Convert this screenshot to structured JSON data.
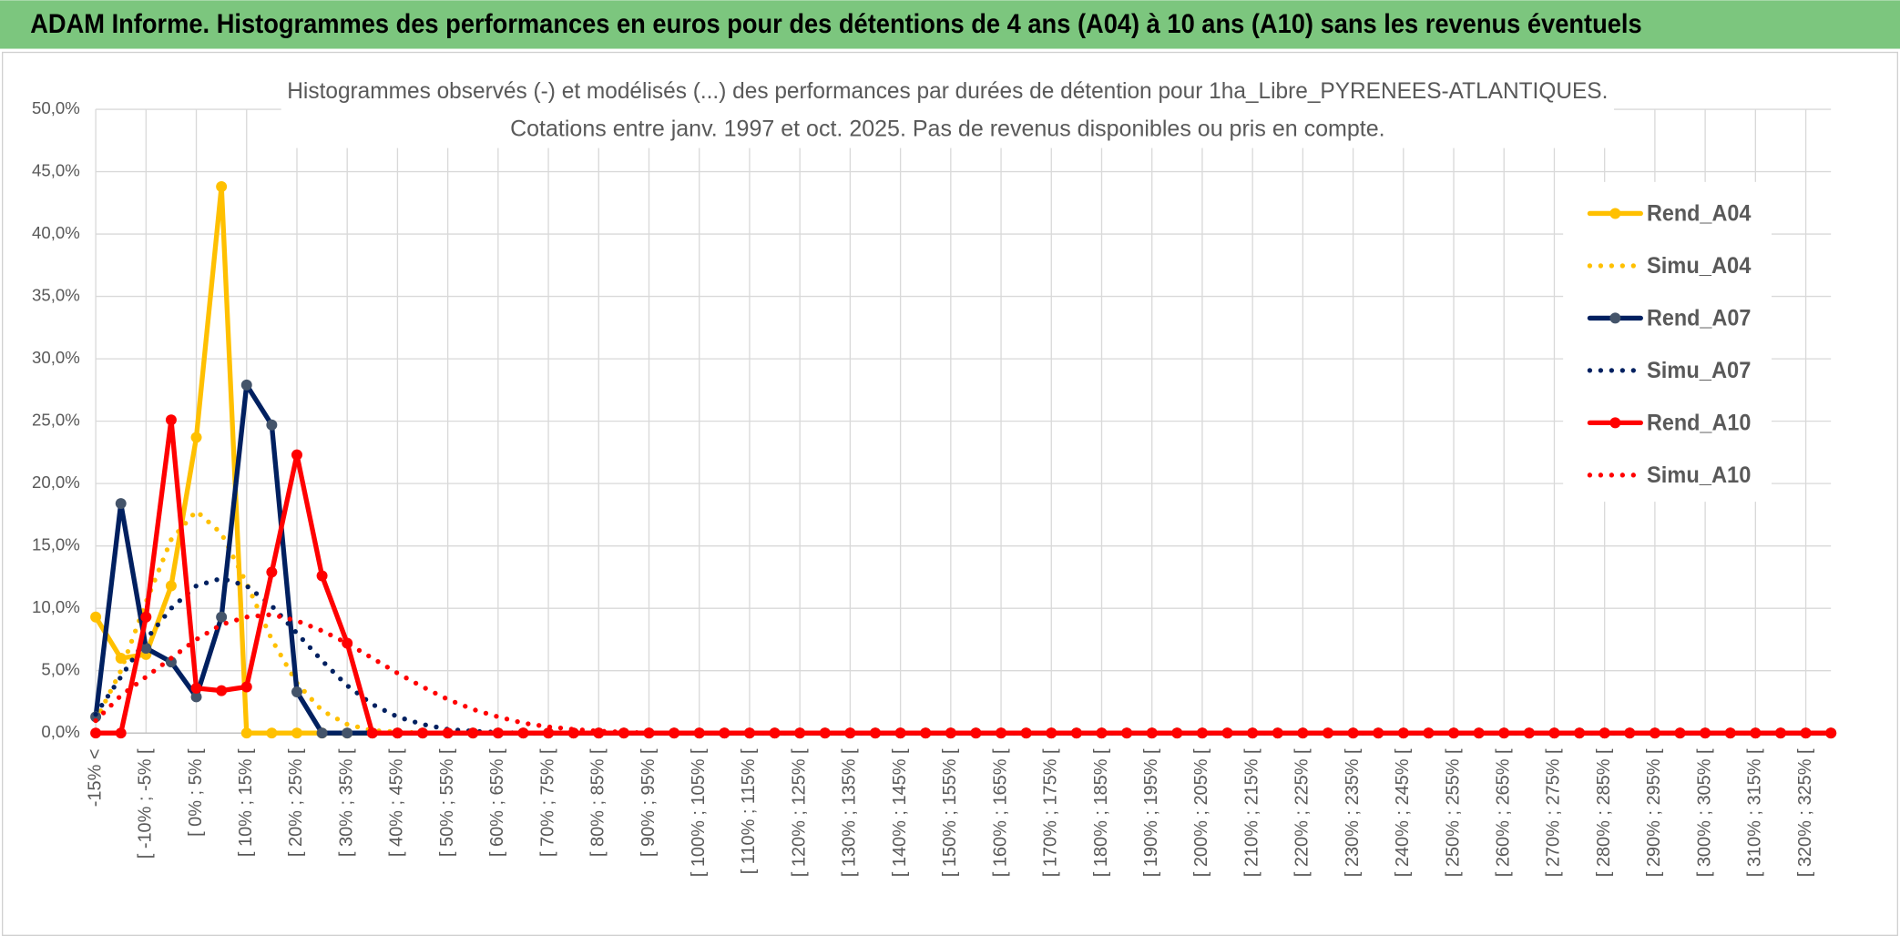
{
  "header": {
    "title": "ADAM Informe. Histogrammes des performances en euros pour des détentions de 4 ans (A04) à 10 ans (A10) sans les revenus éventuels"
  },
  "chart_data": {
    "type": "line",
    "title": "Histogrammes observés (-) et modélisés (...) des performances par durées de détention pour 1ha_Libre_PYRENEES-ATLANTIQUES.",
    "subtitle": "Cotations entre janv. 1997 et oct. 2025. Pas de revenus disponibles ou pris en compte.",
    "categories": [
      "-15% <",
      null,
      "[ -10% ; -5% [",
      null,
      "[ 0% ; 5% [",
      null,
      "[ 10% ; 15% [",
      null,
      "[ 20% ; 25% [",
      null,
      "[ 30% ; 35% [",
      null,
      "[ 40% ; 45% [",
      null,
      "[ 50% ; 55% [",
      null,
      "[ 60% ; 65% [",
      null,
      "[ 70% ; 75% [",
      null,
      "[ 80% ; 85% [",
      null,
      "[ 90% ; 95% [",
      null,
      "[ 100% ; 105% [",
      null,
      "[ 110% ; 115% [",
      null,
      "[ 120% ; 125% [",
      null,
      "[ 130% ; 135% [",
      null,
      "[ 140% ; 145% [",
      null,
      "[ 150% ; 155% [",
      null,
      "[ 160% ; 165% [",
      null,
      "[ 170% ; 175% [",
      null,
      "[ 180% ; 185% [",
      null,
      "[ 190% ; 195% [",
      null,
      "[ 200% ; 205% [",
      null,
      "[ 210% ; 215% [",
      null,
      "[ 220% ; 225% [",
      null,
      "[ 230% ; 235% [",
      null,
      "[ 240% ; 245% [",
      null,
      "[ 250% ; 255% [",
      null,
      "[ 260% ; 265% [",
      null,
      "[ 270% ; 275% [",
      null,
      "[ 280% ; 285% [",
      null,
      "[ 290% ; 295% [",
      null,
      "[ 300% ; 305% [",
      null,
      "[ 310% ; 315% [",
      null,
      "[ 320% ; 325% [",
      null
    ],
    "series": [
      {
        "name": "Rend_A04",
        "color": "#ffc000",
        "style": "solid",
        "values": [
          9.3,
          6.0,
          6.3,
          11.8,
          23.7,
          43.8,
          0,
          0,
          0,
          0,
          0,
          0,
          0,
          0,
          0,
          0,
          0,
          0,
          0,
          0,
          0,
          0,
          0,
          0,
          0,
          0,
          0,
          0,
          0,
          0,
          0,
          0,
          0,
          0,
          0,
          0,
          0,
          0,
          0,
          0,
          0,
          0,
          0,
          0,
          0,
          0,
          0,
          0,
          0,
          0,
          0,
          0,
          0,
          0,
          0,
          0,
          0,
          0,
          0,
          0,
          0,
          0,
          0,
          0,
          0,
          0,
          0,
          0,
          0,
          0
        ]
      },
      {
        "name": "Simu_A04",
        "color": "#ffc000",
        "style": "dotted",
        "values": [
          1.0,
          5.0,
          10.5,
          15.5,
          17.8,
          16.0,
          12.0,
          7.5,
          4.0,
          1.8,
          0.7,
          0.2,
          0.1,
          0,
          0,
          0,
          0,
          0,
          0,
          0,
          0,
          0,
          0,
          0,
          0,
          0,
          0,
          0,
          0,
          0,
          0,
          0,
          0,
          0,
          0,
          0,
          0,
          0,
          0,
          0,
          0,
          0,
          0,
          0,
          0,
          0,
          0,
          0,
          0,
          0,
          0,
          0,
          0,
          0,
          0,
          0,
          0,
          0,
          0,
          0,
          0,
          0,
          0,
          0,
          0,
          0,
          0,
          0,
          0,
          0
        ]
      },
      {
        "name": "Rend_A07",
        "color": "#002060",
        "style": "solid",
        "values": [
          1.3,
          18.4,
          6.8,
          5.7,
          2.9,
          9.3,
          27.9,
          24.7,
          3.3,
          0,
          0,
          0,
          0,
          0,
          0,
          0,
          0,
          0,
          0,
          0,
          0,
          0,
          0,
          0,
          0,
          0,
          0,
          0,
          0,
          0,
          0,
          0,
          0,
          0,
          0,
          0,
          0,
          0,
          0,
          0,
          0,
          0,
          0,
          0,
          0,
          0,
          0,
          0,
          0,
          0,
          0,
          0,
          0,
          0,
          0,
          0,
          0,
          0,
          0,
          0,
          0,
          0,
          0,
          0,
          0,
          0,
          0,
          0,
          0,
          0
        ]
      },
      {
        "name": "Simu_A07",
        "color": "#002060",
        "style": "dotted",
        "values": [
          1.5,
          4.5,
          7.5,
          10.0,
          11.8,
          12.4,
          11.8,
          10.2,
          8.0,
          5.8,
          3.8,
          2.3,
          1.3,
          0.7,
          0.3,
          0.15,
          0.05,
          0,
          0,
          0,
          0,
          0,
          0,
          0,
          0,
          0,
          0,
          0,
          0,
          0,
          0,
          0,
          0,
          0,
          0,
          0,
          0,
          0,
          0,
          0,
          0,
          0,
          0,
          0,
          0,
          0,
          0,
          0,
          0,
          0,
          0,
          0,
          0,
          0,
          0,
          0,
          0,
          0,
          0,
          0,
          0,
          0,
          0,
          0,
          0,
          0,
          0,
          0,
          0,
          0
        ]
      },
      {
        "name": "Rend_A10",
        "color": "#ff0000",
        "style": "solid",
        "values": [
          0,
          0,
          9.3,
          25.1,
          3.6,
          3.4,
          3.7,
          12.9,
          22.3,
          12.6,
          7.2,
          0,
          0,
          0,
          0,
          0,
          0,
          0,
          0,
          0,
          0,
          0,
          0,
          0,
          0,
          0,
          0,
          0,
          0,
          0,
          0,
          0,
          0,
          0,
          0,
          0,
          0,
          0,
          0,
          0,
          0,
          0,
          0,
          0,
          0,
          0,
          0,
          0,
          0,
          0,
          0,
          0,
          0,
          0,
          0,
          0,
          0,
          0,
          0,
          0,
          0,
          0,
          0,
          0,
          0,
          0,
          0,
          0,
          0,
          0
        ]
      },
      {
        "name": "Simu_A10",
        "color": "#ff0000",
        "style": "dotted",
        "values": [
          1.0,
          3.0,
          4.5,
          6.0,
          7.5,
          8.7,
          9.3,
          9.5,
          9.0,
          8.2,
          7.2,
          6.0,
          4.8,
          3.7,
          2.7,
          1.9,
          1.3,
          0.8,
          0.5,
          0.3,
          0.15,
          0.08,
          0,
          0,
          0,
          0,
          0,
          0,
          0,
          0,
          0,
          0,
          0,
          0,
          0,
          0,
          0,
          0,
          0,
          0,
          0,
          0,
          0,
          0,
          0,
          0,
          0,
          0,
          0,
          0,
          0,
          0,
          0,
          0,
          0,
          0,
          0,
          0,
          0,
          0,
          0,
          0,
          0,
          0,
          0,
          0,
          0,
          0,
          0,
          0
        ]
      }
    ],
    "ylim": [
      0,
      50
    ],
    "yticks": [
      {
        "value": 0,
        "label": "0,0%"
      },
      {
        "value": 5,
        "label": "5,0%"
      },
      {
        "value": 10,
        "label": "10,0%"
      },
      {
        "value": 15,
        "label": "15,0%"
      },
      {
        "value": 20,
        "label": "20,0%"
      },
      {
        "value": 25,
        "label": "25,0%"
      },
      {
        "value": 30,
        "label": "30,0%"
      },
      {
        "value": 35,
        "label": "35,0%"
      },
      {
        "value": 40,
        "label": "40,0%"
      },
      {
        "value": 45,
        "label": "45,0%"
      },
      {
        "value": 50,
        "label": "50,0%"
      }
    ],
    "grid": true,
    "legend": "right"
  }
}
